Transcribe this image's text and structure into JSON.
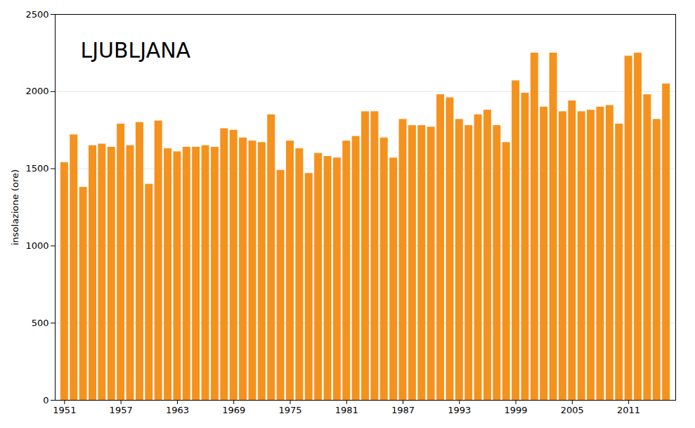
{
  "chart_data": {
    "type": "bar",
    "title": "LJUBLJANA",
    "ylabel": "insolazione (ore)",
    "x": [
      1951,
      1952,
      1953,
      1954,
      1955,
      1956,
      1957,
      1958,
      1959,
      1960,
      1961,
      1962,
      1963,
      1964,
      1965,
      1966,
      1967,
      1968,
      1969,
      1970,
      1971,
      1972,
      1973,
      1974,
      1975,
      1976,
      1977,
      1978,
      1979,
      1980,
      1981,
      1982,
      1983,
      1984,
      1985,
      1986,
      1987,
      1988,
      1989,
      1990,
      1991,
      1992,
      1993,
      1994,
      1995,
      1996,
      1997,
      1998,
      1999,
      2000,
      2001,
      2002,
      2003,
      2004,
      2005,
      2006,
      2007,
      2008,
      2009,
      2010,
      2011,
      2012,
      2013,
      2014,
      2015
    ],
    "values": [
      1540,
      1720,
      1380,
      1650,
      1660,
      1640,
      1790,
      1650,
      1800,
      1400,
      1810,
      1630,
      1610,
      1640,
      1640,
      1650,
      1640,
      1760,
      1750,
      1700,
      1680,
      1670,
      1850,
      1490,
      1680,
      1630,
      1470,
      1600,
      1580,
      1570,
      1680,
      1710,
      1870,
      1870,
      1700,
      1570,
      1820,
      1780,
      1780,
      1770,
      1980,
      1960,
      1820,
      1780,
      1850,
      1880,
      1780,
      1670,
      2070,
      1990,
      2250,
      1900,
      2250,
      1870,
      1940,
      1870,
      1880,
      1900,
      1910,
      1790,
      2230,
      2250,
      1980,
      1820,
      2050
    ],
    "color": "#F5921E",
    "xlim": [
      1950,
      2016
    ],
    "xticks": [
      1951,
      1957,
      1963,
      1969,
      1975,
      1981,
      1987,
      1993,
      1999,
      2005,
      2011
    ],
    "ylim": [
      0,
      2500
    ],
    "yticks": [
      0,
      500,
      1000,
      1500,
      2000,
      2500
    ],
    "grid": true
  }
}
